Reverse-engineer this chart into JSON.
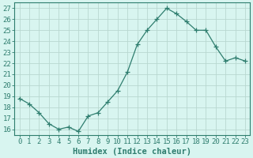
{
  "x": [
    0,
    1,
    2,
    3,
    4,
    5,
    6,
    7,
    8,
    9,
    10,
    11,
    12,
    13,
    14,
    15,
    16,
    17,
    18,
    19,
    20,
    21,
    22,
    23
  ],
  "y": [
    18.8,
    18.3,
    17.5,
    16.5,
    16.0,
    16.2,
    15.8,
    17.2,
    17.5,
    18.5,
    19.5,
    21.2,
    23.7,
    25.0,
    26.0,
    27.0,
    26.5,
    25.8,
    25.0,
    25.0,
    23.5,
    22.2,
    22.5,
    22.2
  ],
  "line_color": "#2e7d6e",
  "marker": "+",
  "bg_color": "#d8f5f0",
  "grid_color": "#b8d8d0",
  "xlabel": "Humidex (Indice chaleur)",
  "ylabel_ticks": [
    16,
    17,
    18,
    19,
    20,
    21,
    22,
    23,
    24,
    25,
    26,
    27
  ],
  "ylim": [
    15.5,
    27.5
  ],
  "xlim": [
    -0.5,
    23.5
  ],
  "xlabel_fontsize": 7.5,
  "tick_fontsize": 6.5,
  "line_width": 0.9,
  "marker_size": 4
}
